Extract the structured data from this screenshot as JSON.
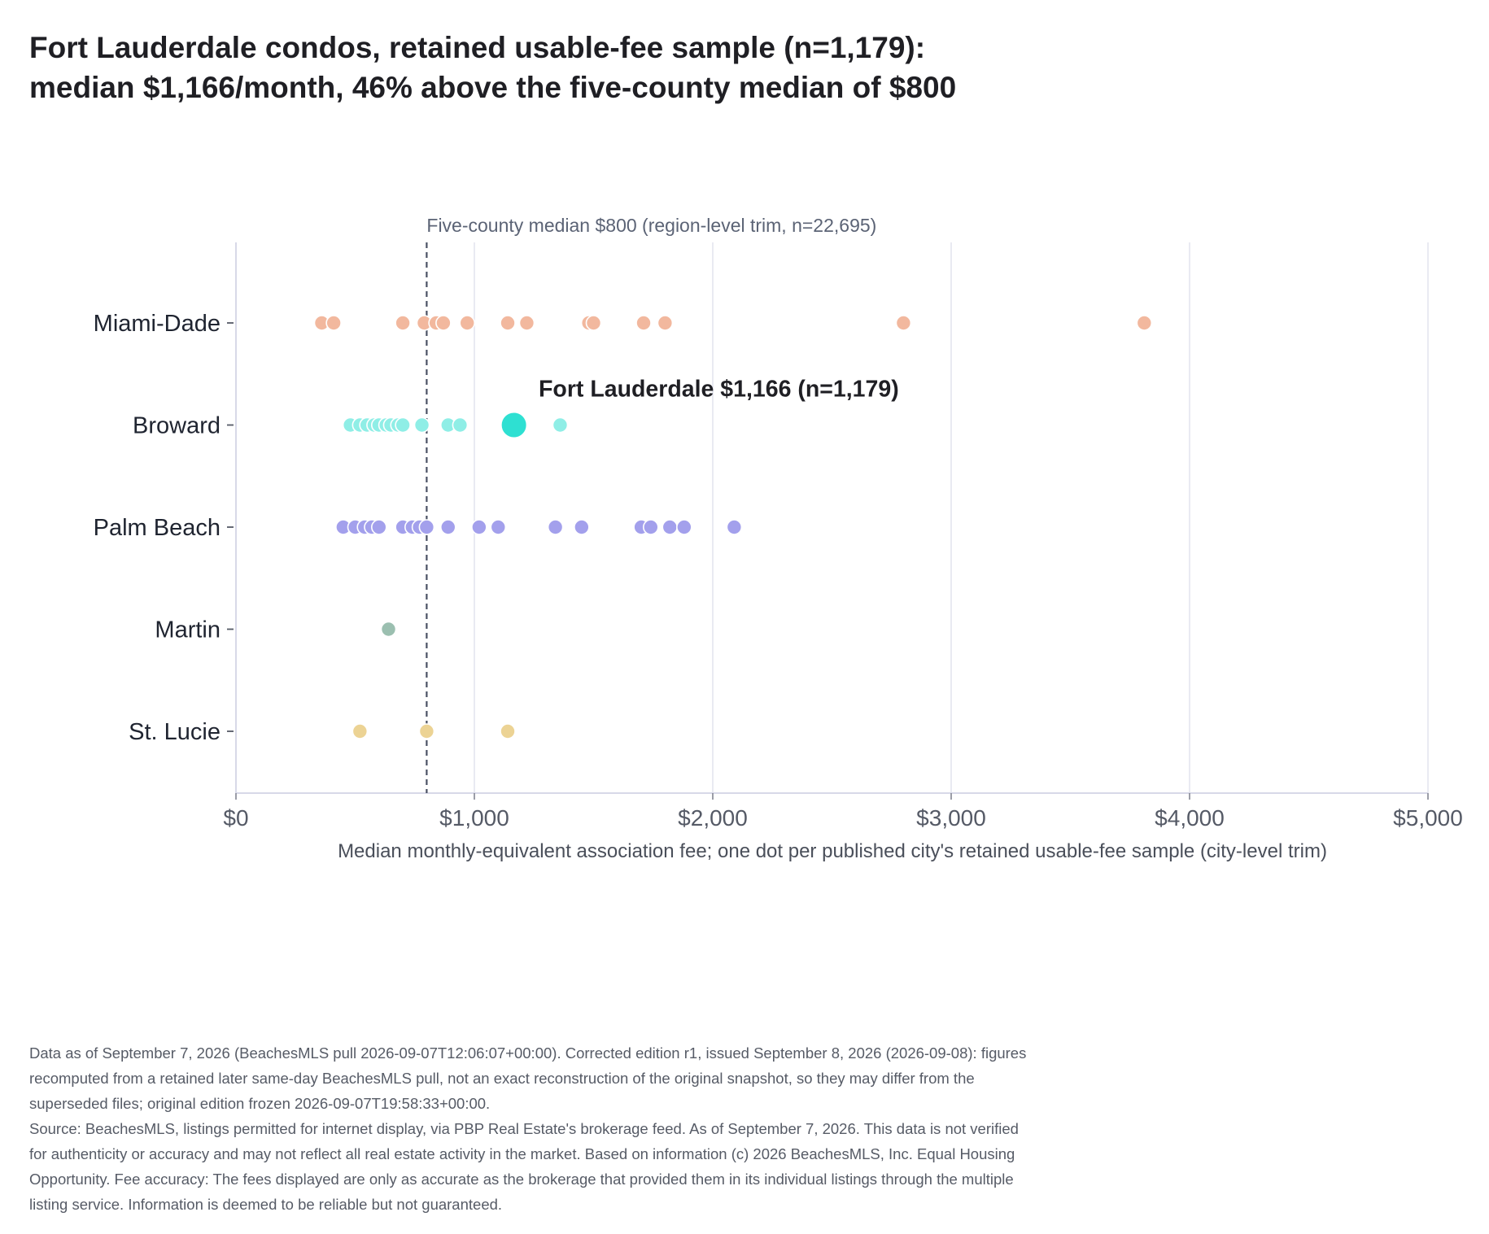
{
  "title_lines": [
    "Fort Lauderdale condos, retained usable-fee sample (n=1,179):",
    "median $1,166/month, 46% above the five-county median of $800"
  ],
  "footnote_lines": [
    "Data as of September 7, 2026 (BeachesMLS pull 2026-09-07T12:06:07+00:00). Corrected edition r1, issued September 8, 2026 (2026-09-08): figures",
    "recomputed from a retained later same-day BeachesMLS pull, not an exact reconstruction of the original snapshot, so they may differ from the",
    "superseded files; original edition frozen 2026-09-07T19:58:33+00:00.",
    "Source: BeachesMLS, listings permitted for internet display, via PBP Real Estate's brokerage feed. As of September 7, 2026. This data is not verified",
    "for authenticity or accuracy and may not reflect all real estate activity in the market. Based on information (c) 2026 BeachesMLS, Inc. Equal Housing",
    "Opportunity. Fee accuracy: The fees displayed are only as accurate as the brokerage that provided them in its individual listings through the multiple",
    "listing service. Information is deemed to be reliable but not guaranteed."
  ],
  "chart_data": {
    "type": "scatter",
    "title": "Fort Lauderdale condos, retained usable-fee sample (n=1,179): median $1,166/month, 46% above the five-county median of $800",
    "xlabel": "Median monthly-equivalent association fee; one dot per published city's retained usable-fee sample (city-level trim)",
    "ylabel": "",
    "xlim": [
      0,
      5000
    ],
    "x_ticks": [
      0,
      1000,
      2000,
      3000,
      4000,
      5000
    ],
    "x_tick_labels": [
      "$0",
      "$1,000",
      "$2,000",
      "$3,000",
      "$4,000",
      "$5,000"
    ],
    "categories": [
      "Miami-Dade",
      "Broward",
      "Palm Beach",
      "Martin",
      "St. Lucie"
    ],
    "grid": "vertical",
    "series": [
      {
        "name": "Miami-Dade",
        "color": "#f2b89e",
        "values": [
          360,
          410,
          700,
          790,
          840,
          870,
          970,
          1140,
          1220,
          1480,
          1500,
          1710,
          1800,
          2800,
          3810
        ]
      },
      {
        "name": "Broward",
        "color": "#8feee6",
        "values": [
          480,
          520,
          550,
          580,
          600,
          630,
          650,
          680,
          700,
          780,
          890,
          940,
          1360
        ]
      },
      {
        "name": "Palm Beach",
        "color": "#a3a0ec",
        "values": [
          450,
          500,
          540,
          570,
          600,
          700,
          740,
          770,
          800,
          890,
          1020,
          1100,
          1340,
          1450,
          1700,
          1740,
          1820,
          1880,
          2090
        ]
      },
      {
        "name": "Martin",
        "color": "#9bbfb0",
        "values": [
          640
        ]
      },
      {
        "name": "St. Lucie",
        "color": "#ecd394",
        "values": [
          520,
          800,
          1140
        ]
      }
    ],
    "highlight": {
      "category": "Broward",
      "value": 1166,
      "color": "#2ee0d2",
      "label": "Fort Lauderdale $1,166 (n=1,179)"
    },
    "reference_line": {
      "value": 800,
      "style": "dashed",
      "label": "Five-county median $800 (region-level trim, n=22,695)"
    }
  }
}
